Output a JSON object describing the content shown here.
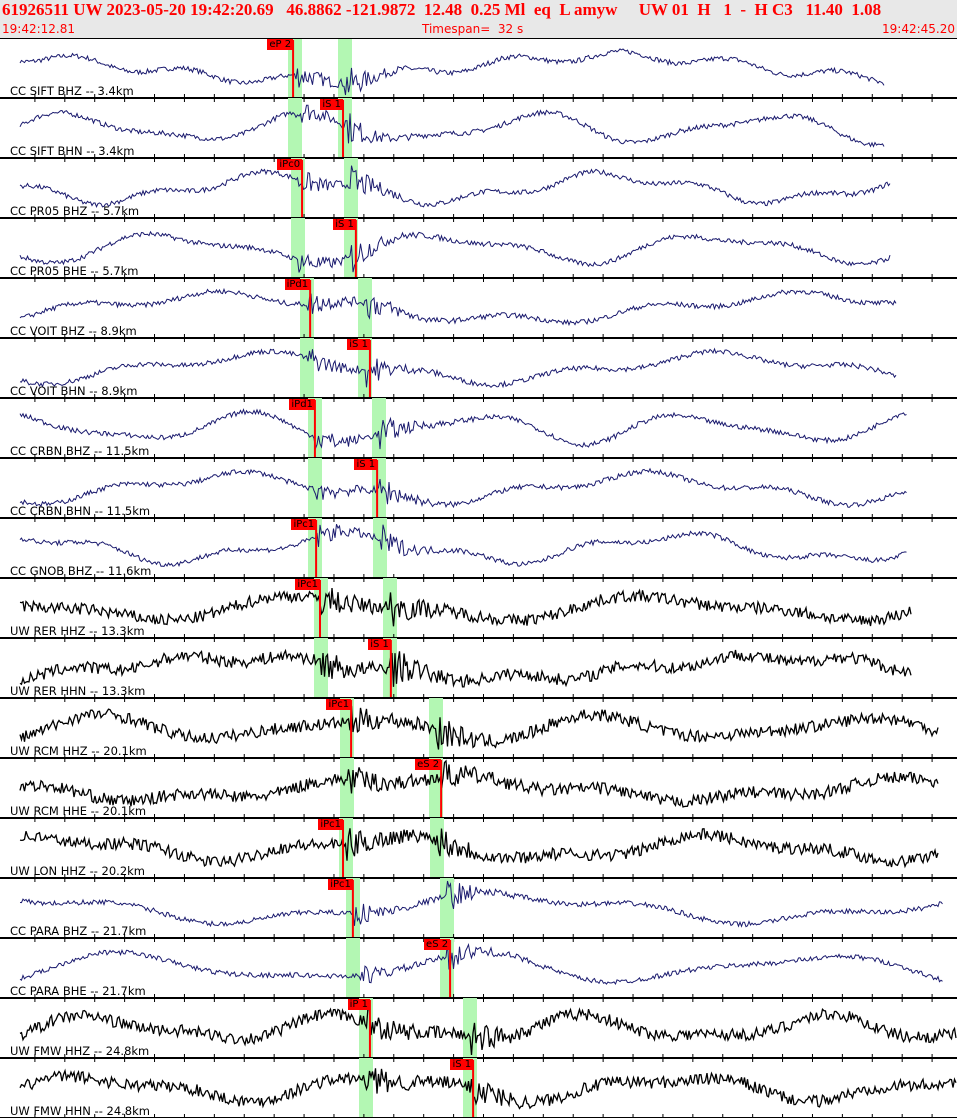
{
  "header": {
    "event_line": "61926511 UW 2023-05-20 19:42:20.69   46.8862 -121.9872  12.48  0.25 Ml  eq  L amyw     UW 01  H   1  -  H C3   11.40  1.08",
    "start_time": "19:42:12.81",
    "timespan": "Timespan=  32 s",
    "end_time": "19:42:45.20"
  },
  "colors": {
    "header_text": "#ff0000",
    "pick": "#ff0000",
    "window": "#b3f7b3",
    "bh_trace": "#1a1a6e",
    "hh_trace": "#000000"
  },
  "timespan_s": 32,
  "traces": [
    {
      "label": "CC SIFT BHZ -- 3.4km",
      "pick": "eP 2",
      "pick_time_s": 9.8
    },
    {
      "label": "CC SIFT BHN -- 3.4km",
      "pick": "iS 1",
      "pick_time_s": 11.47
    },
    {
      "label": "CC PR05 BHZ -- 5.7km",
      "pick": "iPc0",
      "pick_time_s": 10.1
    },
    {
      "label": "CC PR05 BHE -- 5.7km",
      "pick": "iS 1",
      "pick_time_s": 11.9
    },
    {
      "label": "CC VOIT BHZ -- 8.9km",
      "pick": "iPd1",
      "pick_time_s": 10.37
    },
    {
      "label": "CC VOIT BHN -- 8.9km",
      "pick": "iS 1",
      "pick_time_s": 12.37
    },
    {
      "label": "CC CRBN BHZ -- 11.5km",
      "pick": "iPd1",
      "pick_time_s": 10.53
    },
    {
      "label": "CC CRBN BHN -- 11.5km",
      "pick": "iS 1",
      "pick_time_s": 12.61
    },
    {
      "label": "CC GNOB BHZ -- 11.6km",
      "pick": "iPc1",
      "pick_time_s": 10.57
    },
    {
      "label": "UW RER HHZ -- 13.3km",
      "pick": "iPc1",
      "pick_time_s": 10.7
    },
    {
      "label": "UW RER HHN -- 13.3km",
      "pick": "iS 1",
      "pick_time_s": 13.07
    },
    {
      "label": "UW RCM HHZ -- 20.1km",
      "pick": "iPc1",
      "pick_time_s": 11.74
    },
    {
      "label": "UW RCM HHE -- 20.1km",
      "pick": "eS 2",
      "pick_time_s": 14.75
    },
    {
      "label": "UW LON HHZ -- 20.2km",
      "pick": "iPc1",
      "pick_time_s": 11.47
    },
    {
      "label": "CC PARA BHZ -- 21.7km",
      "pick": "iPc1",
      "pick_time_s": 11.8
    },
    {
      "label": "CC PARA BHE -- 21.7km",
      "pick": "eS 2",
      "pick_time_s": 15.05
    },
    {
      "label": "UW FMW HHZ -- 24.8km",
      "pick": "iP 1",
      "pick_time_s": 12.37
    },
    {
      "label": "UW FMW HHN -- 24.8km",
      "pick": "iS 1",
      "pick_time_s": 15.82
    }
  ]
}
